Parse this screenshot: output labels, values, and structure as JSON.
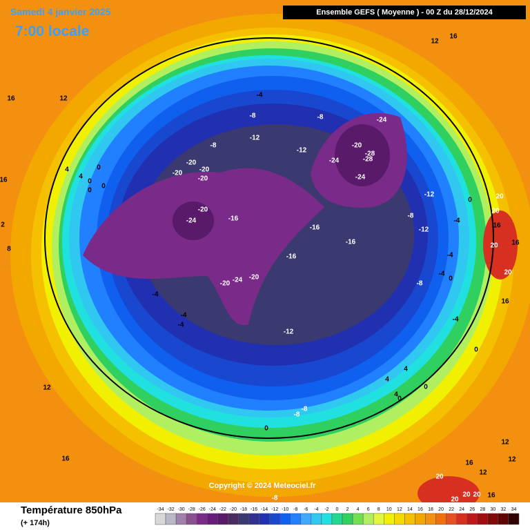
{
  "header": {
    "date": "Samedi 4 janvier 2025",
    "time": "7:00 locale",
    "run": "Ensemble GEFS  ( Moyenne )  -  00 Z du 28/12/2024"
  },
  "map": {
    "copyright": "Copyright © 2024 Meteociel.fr",
    "contour_labels": [
      16,
      12,
      16,
      12,
      -4,
      -8,
      -8,
      -24,
      -8,
      -12,
      -12,
      -20,
      -28,
      -28,
      -24,
      4,
      0,
      4,
      0,
      0,
      0,
      16,
      -20,
      -20,
      -20,
      -20,
      -24,
      -12,
      20,
      20,
      0,
      16,
      16,
      20,
      -20,
      -24,
      -16,
      -16,
      -16,
      -12,
      -8,
      -4,
      -16,
      -4,
      -4,
      0,
      20,
      8,
      2,
      -20,
      -24,
      -20,
      -4,
      -4,
      -4,
      -8,
      -4,
      16,
      -12,
      0,
      4,
      4,
      0,
      4,
      0,
      12,
      -8,
      -8,
      0,
      16,
      12,
      12,
      16,
      12,
      20,
      20,
      20,
      20,
      16,
      -8
    ]
  },
  "legend": {
    "title": "Température 850hPa",
    "subtitle": "(+ 174h)",
    "ticks": [
      -34,
      -32,
      -30,
      -28,
      -26,
      -24,
      -22,
      -20,
      -18,
      -16,
      -14,
      -12,
      -10,
      -8,
      -6,
      -4,
      -2,
      0,
      2,
      4,
      6,
      8,
      10,
      12,
      14,
      16,
      18,
      20,
      22,
      24,
      26,
      28,
      30,
      32,
      34
    ],
    "colors": [
      "#d8d8d8",
      "#b8b8c8",
      "#a080a8",
      "#8a5090",
      "#7a2a88",
      "#6a1a7a",
      "#5a1a6a",
      "#4a2a60",
      "#3a3a70",
      "#303090",
      "#2030b0",
      "#1848d0",
      "#1060f0",
      "#2080ff",
      "#40a8ff",
      "#30c8f0",
      "#20e0e0",
      "#20d890",
      "#30d060",
      "#70e050",
      "#b0f060",
      "#e0f840",
      "#f0f000",
      "#f5d800",
      "#f5c000",
      "#f3a800",
      "#f39010",
      "#f07010",
      "#e85020",
      "#d83020",
      "#c01818",
      "#a00c10",
      "#800808",
      "#600404",
      "#300000"
    ]
  }
}
